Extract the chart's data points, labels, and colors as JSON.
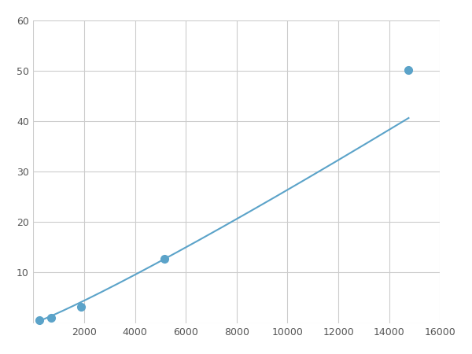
{
  "x_points": [
    234,
    703,
    1875,
    5156,
    14766
  ],
  "y_points": [
    0.6,
    1.0,
    3.2,
    12.8,
    50.2
  ],
  "line_color": "#5ba3c9",
  "marker_color": "#5ba3c9",
  "marker_size": 7,
  "linewidth": 1.5,
  "xlim": [
    0,
    16000
  ],
  "ylim": [
    0,
    60
  ],
  "xticks": [
    0,
    2000,
    4000,
    6000,
    8000,
    10000,
    12000,
    14000,
    16000
  ],
  "yticks": [
    0,
    10,
    20,
    30,
    40,
    50,
    60
  ],
  "grid_color": "#cccccc",
  "grid_linestyle": "-",
  "grid_linewidth": 0.8,
  "background_color": "#ffffff",
  "spine_color": "#aaaaaa",
  "power_law_a": 0.00012,
  "power_law_b": 1.72
}
